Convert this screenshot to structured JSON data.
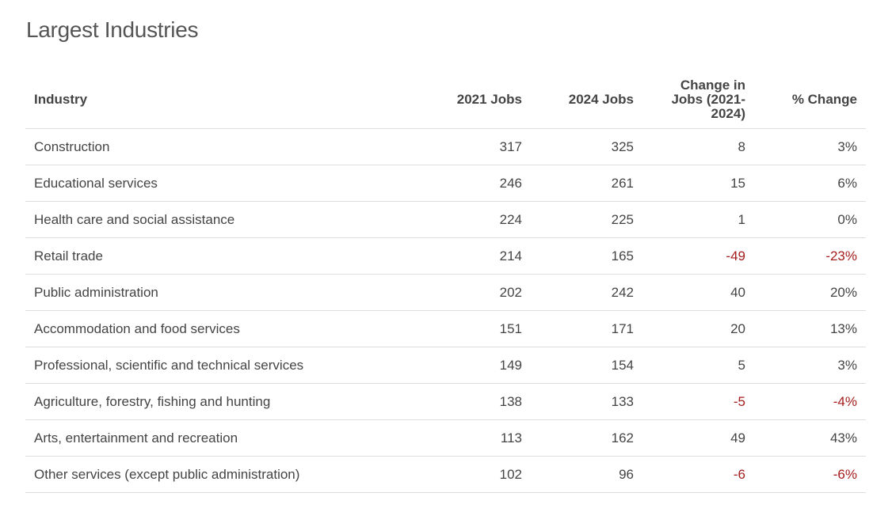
{
  "header": {
    "title": "Largest Industries"
  },
  "table": {
    "columns": [
      "Industry",
      "2021 Jobs",
      "2024 Jobs",
      "Change in Jobs (2021-2024)",
      "% Change"
    ],
    "rows": [
      [
        "Construction",
        "317",
        "325",
        "8",
        "3%"
      ],
      [
        "Educational services",
        "246",
        "261",
        "15",
        "6%"
      ],
      [
        "Health care and social assistance",
        "224",
        "225",
        "1",
        "0%"
      ],
      [
        "Retail trade",
        "214",
        "165",
        "-49",
        "-23%"
      ],
      [
        "Public administration",
        "202",
        "242",
        "40",
        "20%"
      ],
      [
        "Accommodation and food services",
        "151",
        "171",
        "20",
        "13%"
      ],
      [
        "Professional, scientific and technical services",
        "149",
        "154",
        "5",
        "3%"
      ],
      [
        "Agriculture, forestry, fishing and hunting",
        "138",
        "133",
        "-5",
        "-4%"
      ],
      [
        "Arts, entertainment and recreation",
        "113",
        "162",
        "49",
        "43%"
      ],
      [
        "Other services (except public administration)",
        "102",
        "96",
        "-6",
        "-6%"
      ]
    ]
  }
}
